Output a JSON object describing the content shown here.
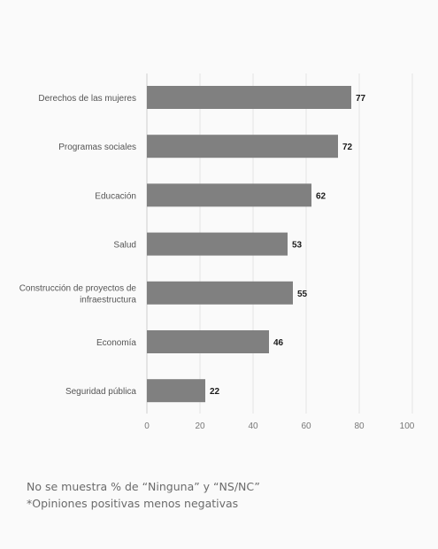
{
  "chart_data": {
    "type": "bar",
    "orientation": "horizontal",
    "categories": [
      "Derechos de las mujeres",
      "Programas sociales",
      "Educación",
      "Salud",
      "Construcción de proyectos de infraestructura",
      "Economía",
      "Seguridad pública"
    ],
    "category_lines": [
      [
        "Derechos de las mujeres"
      ],
      [
        "Programas sociales"
      ],
      [
        "Educación"
      ],
      [
        "Salud"
      ],
      [
        "Construcción de proyectos de",
        "infraestructura"
      ],
      [
        "Economía"
      ],
      [
        "Seguridad pública"
      ]
    ],
    "values": [
      77,
      72,
      62,
      53,
      55,
      46,
      22
    ],
    "xlim": [
      0,
      100
    ],
    "xticks": [
      0,
      20,
      40,
      60,
      80,
      100
    ],
    "grid": true,
    "bar_color": "#808080",
    "title": "",
    "xlabel": "",
    "ylabel": ""
  },
  "notes": [
    "No se muestra % de “Ninguna” y “NS/NC”",
    "*Opiniones positivas menos negativas"
  ]
}
